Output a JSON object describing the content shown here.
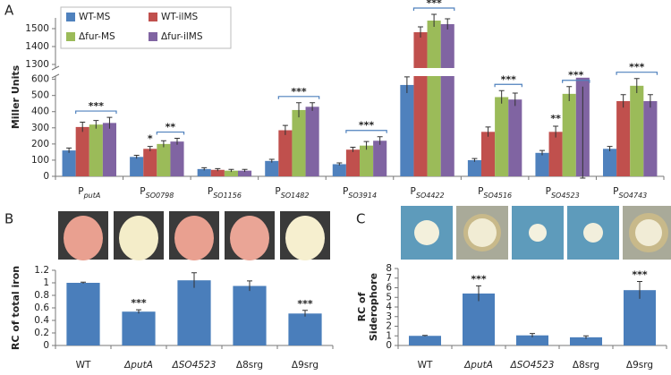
{
  "chart_data": [
    {
      "type": "bar",
      "panel": "A",
      "ylabel": "Miller Units",
      "category_prefix": "P",
      "categories": [
        "putA",
        "SO0798",
        "SO1156",
        "SO1482",
        "SO3914",
        "SO4422",
        "SO4516",
        "SO4523",
        "SO4743"
      ],
      "series": [
        {
          "name": "WT-MS",
          "color": "#4f81bd",
          "values": [
            160,
            120,
            45,
            95,
            75,
            565,
            100,
            145,
            170
          ],
          "errors": [
            15,
            10,
            8,
            10,
            8,
            50,
            10,
            15,
            15
          ]
        },
        {
          "name": "WT-ilMS",
          "color": "#c0504d",
          "values": [
            305,
            170,
            40,
            285,
            165,
            1480,
            275,
            275,
            465
          ],
          "errors": [
            30,
            15,
            8,
            30,
            15,
            30,
            30,
            35,
            40
          ]
        },
        {
          "name": "Δfur-MS",
          "color": "#9bbb59",
          "values": [
            320,
            200,
            35,
            410,
            190,
            1545,
            490,
            510,
            560
          ],
          "errors": [
            25,
            20,
            8,
            45,
            25,
            35,
            40,
            45,
            45
          ]
        },
        {
          "name": "Δfur-ilMS",
          "color": "#8064a2",
          "values": [
            330,
            215,
            35,
            430,
            220,
            1525,
            475,
            610,
            465
          ],
          "errors": [
            35,
            20,
            8,
            25,
            25,
            30,
            40,
            55,
            40
          ]
        }
      ],
      "ylim": [
        0,
        1560
      ],
      "ybreak": [
        620,
        1280
      ],
      "yticks": [
        0,
        100,
        200,
        300,
        400,
        500,
        600,
        1300,
        1400,
        1500
      ],
      "legend": "top-left",
      "annotations": [
        {
          "text": "***",
          "category": 0,
          "from": 1,
          "to": 3
        },
        {
          "text": "*",
          "category": 1,
          "from": 1,
          "to": 1
        },
        {
          "text": "**",
          "category": 1,
          "from": 2,
          "to": 3
        },
        {
          "text": "***",
          "category": 3,
          "from": 1,
          "to": 3
        },
        {
          "text": "***",
          "category": 4,
          "from": 1,
          "to": 3
        },
        {
          "text": "***",
          "category": 5,
          "from": 1,
          "to": 3
        },
        {
          "text": "***",
          "category": 6,
          "from": 2,
          "to": 3
        },
        {
          "text": "**",
          "category": 7,
          "from": 1,
          "to": 1
        },
        {
          "text": "***",
          "category": 7,
          "from": 2,
          "to": 3
        },
        {
          "text": "***",
          "category": 8,
          "from": 1,
          "to": 3
        }
      ]
    },
    {
      "type": "bar",
      "panel": "B",
      "ylabel": "RC of total iron",
      "categories": [
        "WT",
        "ΔputA",
        "ΔSO4523",
        "Δ8srg",
        "Δ9srg"
      ],
      "italic": [
        false,
        true,
        true,
        false,
        false
      ],
      "values": [
        1.0,
        0.54,
        1.04,
        0.95,
        0.51
      ],
      "errors": [
        0.01,
        0.03,
        0.12,
        0.08,
        0.05
      ],
      "color": "#4a7ebb",
      "ylim": [
        0,
        1.2
      ],
      "yticks": [
        0,
        0.2,
        0.4,
        0.6,
        0.8,
        1,
        1.2
      ],
      "annotations": [
        {
          "text": "***",
          "category": 1
        },
        {
          "text": "***",
          "category": 4
        }
      ]
    },
    {
      "type": "bar",
      "panel": "C",
      "ylabel": [
        "RC of",
        "Siderophore"
      ],
      "categories": [
        "WT",
        "ΔputA",
        "ΔSO4523",
        "Δ8srg",
        "Δ9srg"
      ],
      "italic": [
        false,
        true,
        true,
        false,
        false
      ],
      "values": [
        1.0,
        5.4,
        1.05,
        0.85,
        5.75
      ],
      "errors": [
        0.05,
        0.8,
        0.2,
        0.15,
        0.9
      ],
      "color": "#4a7ebb",
      "ylim": [
        0,
        8
      ],
      "yticks": [
        0,
        1,
        2,
        3,
        4,
        5,
        6,
        7,
        8
      ],
      "annotations": [
        {
          "text": "***",
          "category": 1
        },
        {
          "text": "***",
          "category": 4
        }
      ]
    }
  ]
}
